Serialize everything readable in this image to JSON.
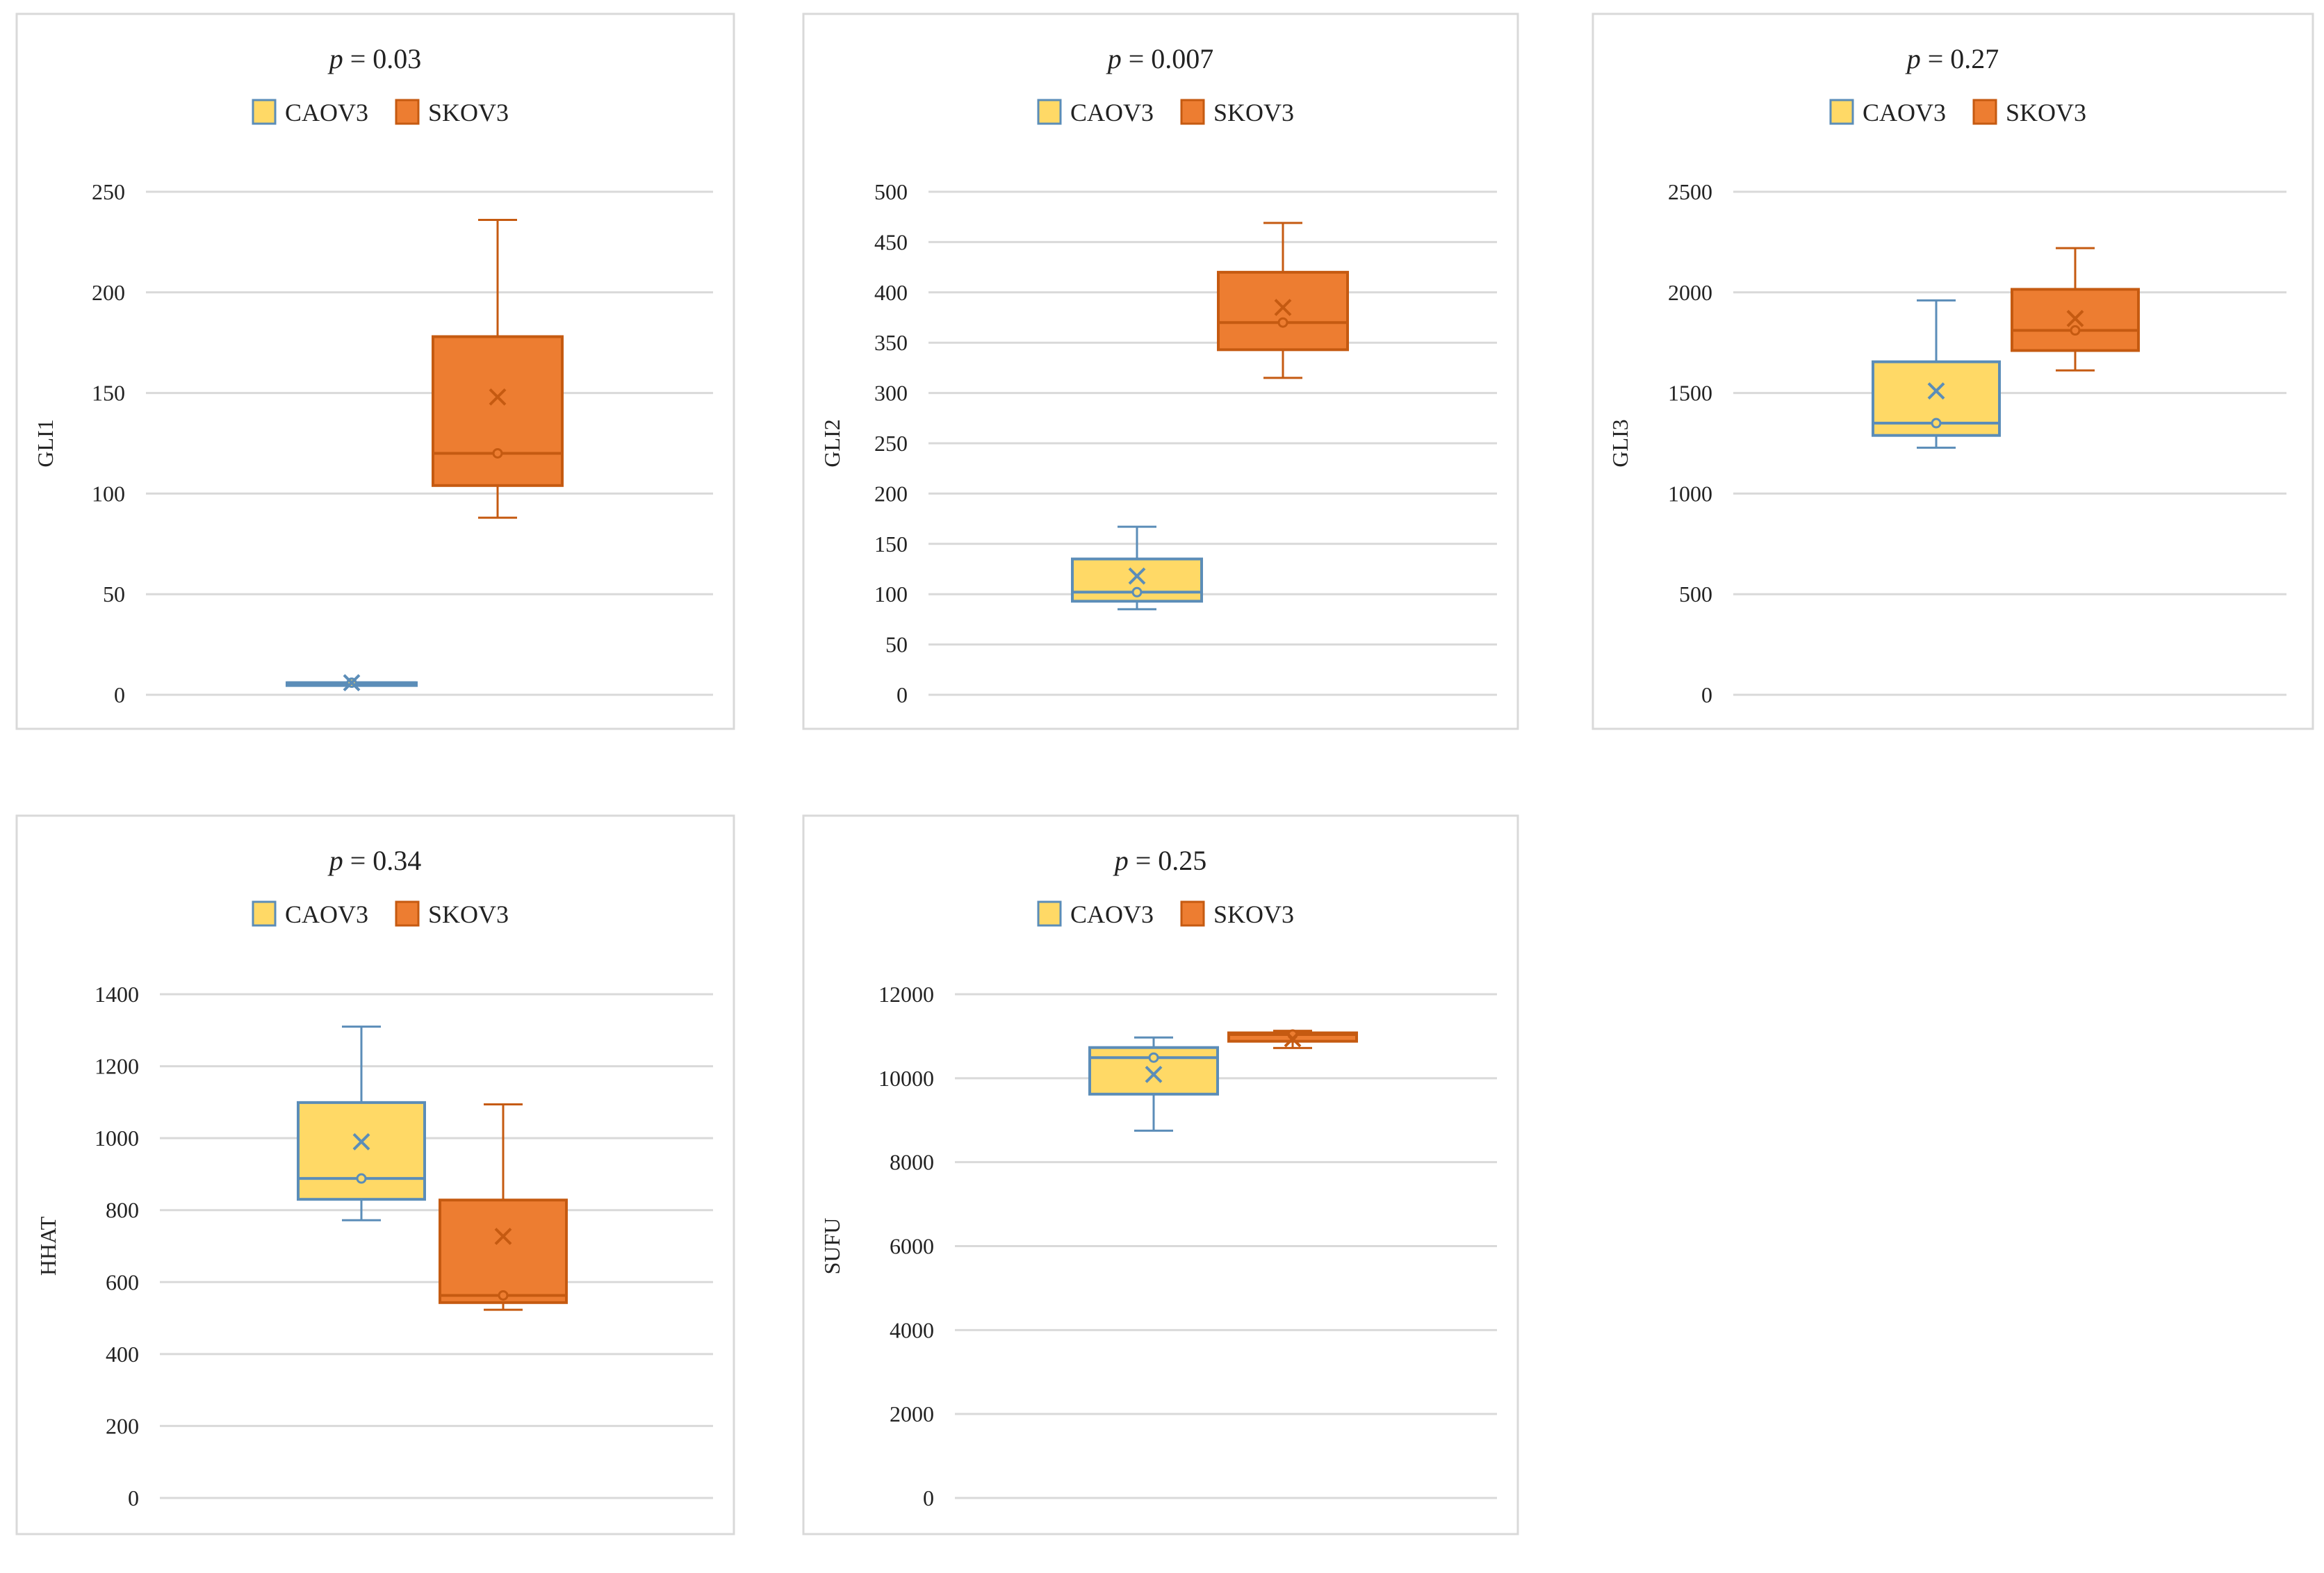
{
  "colors": {
    "caov3_fill": "#ffd966",
    "caov3_stroke": "#5b8db8",
    "skov3_fill": "#ed7d31",
    "skov3_stroke": "#c55a11",
    "grid": "#d9d9d9",
    "frame": "#d9d9d9"
  },
  "chart_data": [
    {
      "type": "box",
      "title_prefix": "p",
      "title_value": "= 0.03",
      "ylabel": "GLI1",
      "xlabel": "",
      "ylim": [
        0,
        250
      ],
      "yticks": [
        0,
        50,
        100,
        150,
        200,
        250
      ],
      "ytick_labels": [
        "0",
        "50",
        "100",
        "150",
        "200",
        "250"
      ],
      "legend": [
        "CAOV3",
        "SKOV3"
      ],
      "legend_position": "top-center",
      "series": [
        {
          "name": "CAOV3",
          "min": 6,
          "q1": 6,
          "median": 6,
          "q3": 6,
          "max": 6,
          "mean": 6
        },
        {
          "name": "SKOV3",
          "min": 88,
          "q1": 104,
          "median": 120,
          "q3": 178,
          "max": 236,
          "mean": 148
        }
      ]
    },
    {
      "type": "box",
      "title_prefix": "p",
      "title_value": "= 0.007",
      "ylabel": "GLI2",
      "xlabel": "",
      "ylim": [
        0,
        500
      ],
      "yticks": [
        0,
        50,
        100,
        150,
        200,
        250,
        300,
        350,
        400,
        450,
        500
      ],
      "ytick_labels": [
        "0",
        "50",
        "100",
        "150",
        "200",
        "250",
        "300",
        "350",
        "400",
        "450",
        "500"
      ],
      "legend": [
        "CAOV3",
        "SKOV3"
      ],
      "legend_position": "top-center",
      "series": [
        {
          "name": "CAOV3",
          "min": 85,
          "q1": 93,
          "median": 102,
          "q3": 135,
          "max": 167,
          "mean": 118
        },
        {
          "name": "SKOV3",
          "min": 315,
          "q1": 343,
          "median": 370,
          "q3": 420,
          "max": 469,
          "mean": 385
        }
      ]
    },
    {
      "type": "box",
      "title_prefix": "p",
      "title_value": "= 0.27",
      "ylabel": "GLI3",
      "xlabel": "",
      "ylim": [
        0,
        2500
      ],
      "yticks": [
        0,
        500,
        1000,
        1500,
        2000,
        2500
      ],
      "ytick_labels": [
        "0",
        "500",
        "1000",
        "1500",
        "2000",
        "2500"
      ],
      "legend": [
        "CAOV3",
        "SKOV3"
      ],
      "legend_position": "top-center",
      "series": [
        {
          "name": "CAOV3",
          "min": 1228,
          "q1": 1289,
          "median": 1350,
          "q3": 1655,
          "max": 1960,
          "mean": 1510
        },
        {
          "name": "SKOV3",
          "min": 1612,
          "q1": 1711,
          "median": 1811,
          "q3": 2015,
          "max": 2220,
          "mean": 1870
        }
      ]
    },
    {
      "type": "box",
      "title_prefix": "p",
      "title_value": "= 0.34",
      "ylabel": "HHAT",
      "xlabel": "",
      "ylim": [
        0,
        1400
      ],
      "yticks": [
        0,
        200,
        400,
        600,
        800,
        1000,
        1200,
        1400
      ],
      "ytick_labels": [
        "0",
        "200",
        "400",
        "600",
        "800",
        "1000",
        "1200",
        "1400"
      ],
      "legend": [
        "CAOV3",
        "SKOV3"
      ],
      "legend_position": "top-center",
      "series": [
        {
          "name": "CAOV3",
          "min": 772,
          "q1": 830,
          "median": 888,
          "q3": 1099,
          "max": 1310,
          "mean": 990
        },
        {
          "name": "SKOV3",
          "min": 523,
          "q1": 543,
          "median": 563,
          "q3": 828,
          "max": 1094,
          "mean": 727
        }
      ]
    },
    {
      "type": "box",
      "title_prefix": "p",
      "title_value": "= 0.25",
      "ylabel": "SUFU",
      "xlabel": "",
      "ylim": [
        0,
        12000
      ],
      "yticks": [
        0,
        2000,
        4000,
        6000,
        8000,
        10000,
        12000
      ],
      "ytick_labels": [
        "0",
        "2000",
        "4000",
        "6000",
        "8000",
        "10000",
        "12000"
      ],
      "legend": [
        "CAOV3",
        "SKOV3"
      ],
      "legend_position": "top-center",
      "series": [
        {
          "name": "CAOV3",
          "min": 8750,
          "q1": 9620,
          "median": 10490,
          "q3": 10730,
          "max": 10970,
          "mean": 10090
        },
        {
          "name": "SKOV3",
          "min": 10720,
          "q1": 10880,
          "median": 11040,
          "q3": 11080,
          "max": 11130,
          "mean": 10940
        }
      ]
    }
  ]
}
